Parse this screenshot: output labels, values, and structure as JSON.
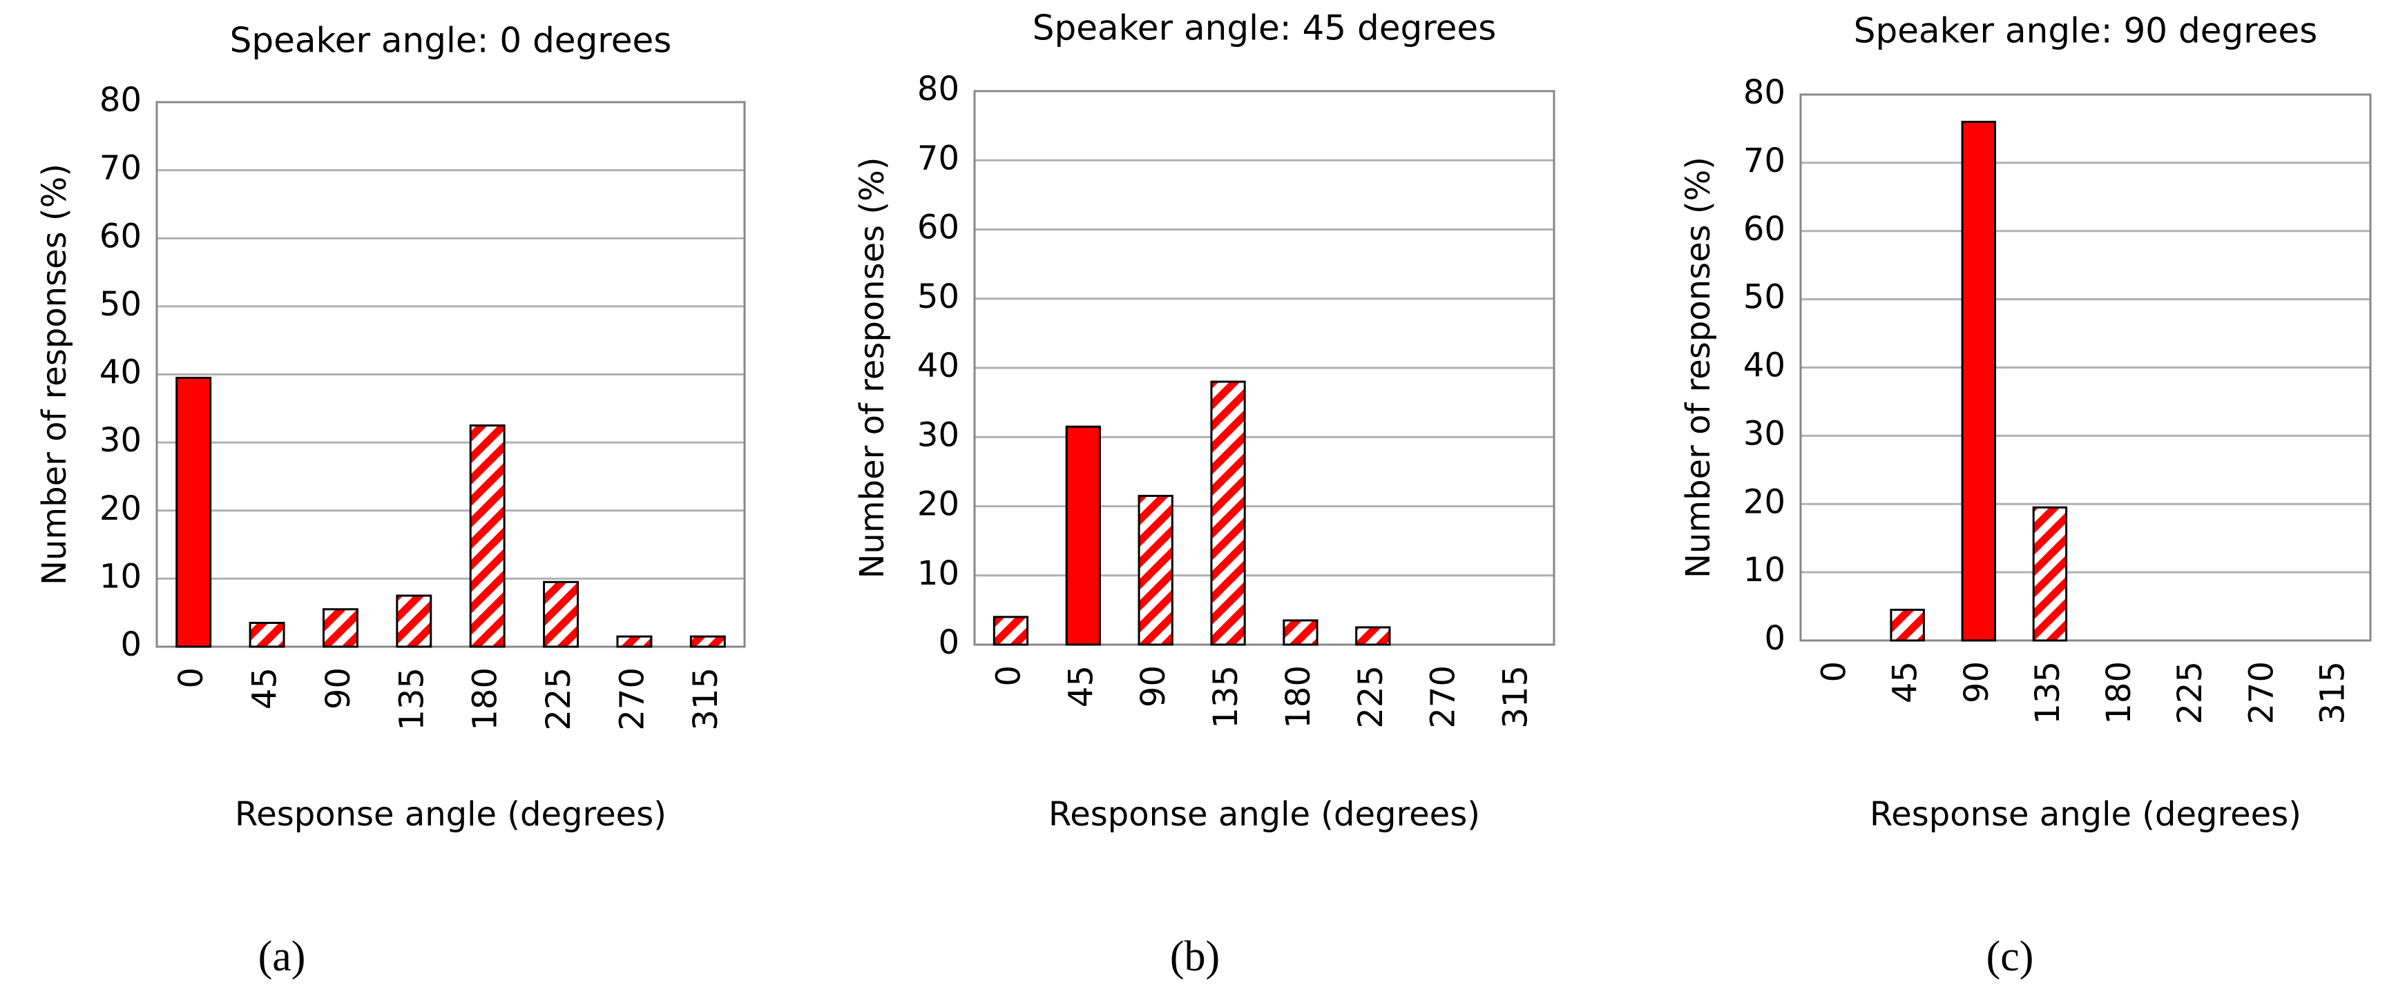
{
  "chart_data": [
    {
      "type": "bar",
      "title": "Speaker angle: 0 degrees",
      "ylabel": "Number of responses (%)",
      "xlabel": "Response angle (degrees)",
      "categories": [
        "0",
        "45",
        "90",
        "135",
        "180",
        "225",
        "270",
        "315"
      ],
      "values": [
        39.5,
        3.5,
        5.5,
        7.5,
        32.5,
        9.5,
        1.5,
        1.5
      ],
      "patterns": [
        "solid",
        "hatched",
        "hatched",
        "hatched",
        "hatched",
        "hatched",
        "hatched",
        "hatched"
      ],
      "color": "#ff0000",
      "ylim": [
        0,
        80
      ],
      "yticks": [
        0,
        10,
        20,
        30,
        40,
        50,
        60,
        70,
        80
      ],
      "grid": true,
      "panel_label": "(a)"
    },
    {
      "type": "bar",
      "title": "Speaker angle: 45 degrees",
      "ylabel": "Number of responses (%)",
      "xlabel": "Response angle (degrees)",
      "categories": [
        "0",
        "45",
        "90",
        "135",
        "180",
        "225",
        "270",
        "315"
      ],
      "values": [
        4,
        31.5,
        21.5,
        38,
        3.5,
        2.5,
        0,
        0
      ],
      "patterns": [
        "hatched",
        "solid",
        "hatched",
        "hatched",
        "hatched",
        "hatched",
        "hatched",
        "hatched"
      ],
      "color": "#ff0000",
      "ylim": [
        0,
        80
      ],
      "yticks": [
        0,
        10,
        20,
        30,
        40,
        50,
        60,
        70,
        80
      ],
      "grid": true,
      "panel_label": "(b)"
    },
    {
      "type": "bar",
      "title": "Speaker angle: 90 degrees",
      "ylabel": "Number of responses (%)",
      "xlabel": "Response angle (degrees)",
      "categories": [
        "0",
        "45",
        "90",
        "135",
        "180",
        "225",
        "270",
        "315"
      ],
      "values": [
        0,
        4.5,
        76,
        19.5,
        0,
        0,
        0,
        0
      ],
      "patterns": [
        "hatched",
        "hatched",
        "solid",
        "hatched",
        "hatched",
        "hatched",
        "hatched",
        "hatched"
      ],
      "color": "#ff0000",
      "ylim": [
        0,
        80
      ],
      "yticks": [
        0,
        10,
        20,
        30,
        40,
        50,
        60,
        70,
        80
      ],
      "grid": true,
      "panel_label": "(c)"
    }
  ]
}
